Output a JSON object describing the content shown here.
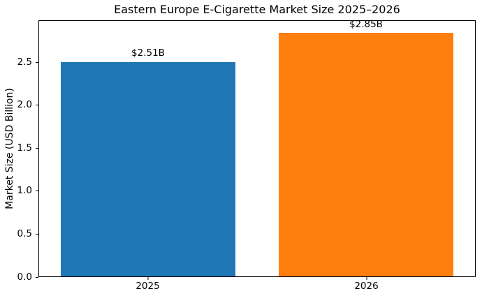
{
  "chart_data": {
    "type": "bar",
    "title": "Eastern Europe E-Cigarette Market Size 2025–2026",
    "xlabel": "",
    "ylabel": "Market Size (USD Billion)",
    "categories": [
      "2025",
      "2026"
    ],
    "values": [
      2.51,
      2.85
    ],
    "value_labels": [
      "$2.51B",
      "$2.85B"
    ],
    "bar_colors": [
      "#1f77b4",
      "#ff7f0e"
    ],
    "yticks": [
      0,
      0.5,
      1,
      1.5,
      2,
      2.5
    ],
    "ytick_labels": [
      "0.0",
      "0.5",
      "1.0",
      "1.5",
      "2.0",
      "2.5"
    ],
    "ylim": [
      0,
      2.99
    ],
    "xlim": [
      -0.5,
      1.5
    ],
    "bar_width": 0.8,
    "grid": false,
    "legend": false,
    "background": "#ffffff",
    "spine_color": "#000000",
    "text_color": "#000000"
  }
}
